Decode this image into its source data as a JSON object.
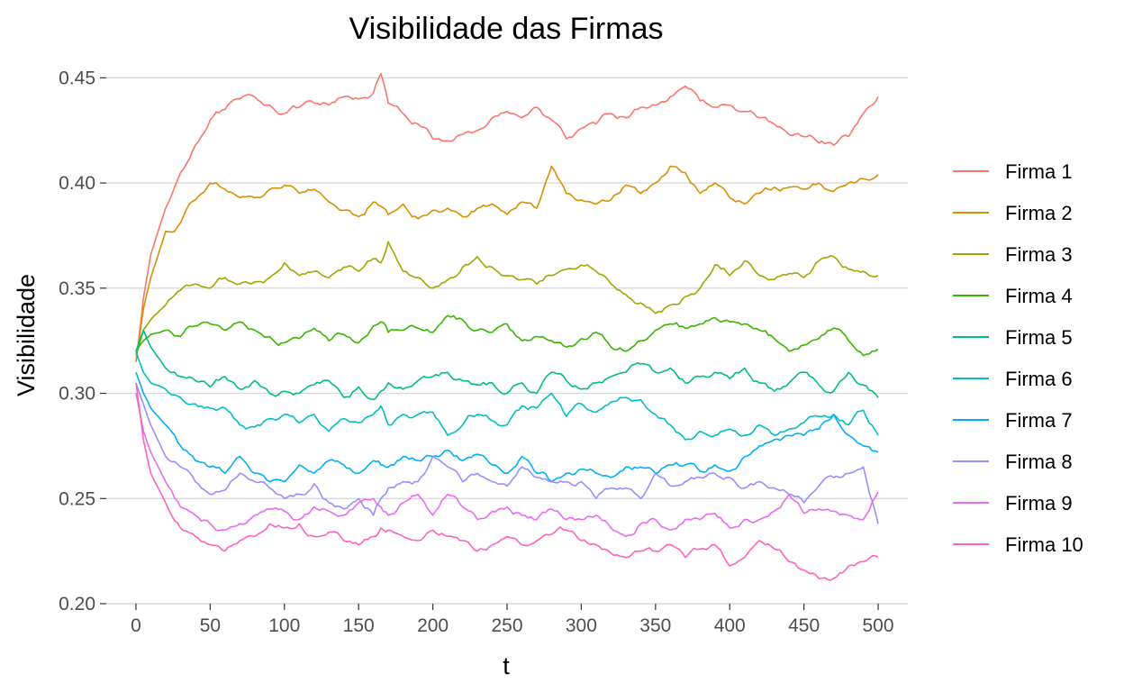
{
  "chart_data": {
    "type": "line",
    "title": "Visibilidade das Firmas",
    "xlabel": "t",
    "ylabel": "Visibilidade",
    "xlim": [
      -20,
      520
    ],
    "ylim": [
      0.2,
      0.457
    ],
    "x_ticks": [
      0,
      50,
      100,
      150,
      200,
      250,
      300,
      350,
      400,
      450,
      500
    ],
    "y_ticks": [
      0.2,
      0.25,
      0.3,
      0.35,
      0.4,
      0.45
    ],
    "y_tick_labels": [
      "0.20",
      "0.25",
      "0.30",
      "0.35",
      "0.40",
      "0.45"
    ],
    "grid": "horizontal major",
    "legend_position": "right",
    "x": [
      0,
      5,
      10,
      20,
      30,
      40,
      50,
      60,
      70,
      80,
      90,
      100,
      110,
      120,
      130,
      140,
      150,
      160,
      165,
      170,
      180,
      190,
      200,
      210,
      220,
      230,
      240,
      250,
      260,
      270,
      280,
      290,
      300,
      310,
      320,
      330,
      340,
      350,
      360,
      370,
      380,
      390,
      400,
      410,
      420,
      430,
      440,
      450,
      460,
      470,
      480,
      490,
      500
    ],
    "series": [
      {
        "name": "Firma 1",
        "color": "#F8766D",
        "values": [
          0.315,
          0.345,
          0.366,
          0.388,
          0.405,
          0.418,
          0.43,
          0.435,
          0.44,
          0.441,
          0.437,
          0.433,
          0.436,
          0.438,
          0.437,
          0.441,
          0.44,
          0.443,
          0.452,
          0.438,
          0.433,
          0.428,
          0.421,
          0.42,
          0.423,
          0.425,
          0.431,
          0.434,
          0.431,
          0.436,
          0.43,
          0.421,
          0.426,
          0.428,
          0.433,
          0.431,
          0.436,
          0.437,
          0.441,
          0.446,
          0.439,
          0.436,
          0.437,
          0.434,
          0.431,
          0.428,
          0.423,
          0.422,
          0.419,
          0.418,
          0.422,
          0.433,
          0.441
        ]
      },
      {
        "name": "Firma 2",
        "color": "#D89000",
        "values": [
          0.315,
          0.34,
          0.355,
          0.377,
          0.381,
          0.392,
          0.4,
          0.397,
          0.393,
          0.393,
          0.397,
          0.399,
          0.395,
          0.397,
          0.391,
          0.387,
          0.384,
          0.391,
          0.389,
          0.385,
          0.39,
          0.383,
          0.387,
          0.388,
          0.384,
          0.388,
          0.39,
          0.385,
          0.391,
          0.388,
          0.408,
          0.395,
          0.392,
          0.39,
          0.392,
          0.399,
          0.395,
          0.4,
          0.408,
          0.405,
          0.395,
          0.4,
          0.393,
          0.39,
          0.395,
          0.398,
          0.398,
          0.397,
          0.4,
          0.396,
          0.4,
          0.402,
          0.404
        ]
      },
      {
        "name": "Firma 3",
        "color": "#A3A500",
        "values": [
          0.318,
          0.33,
          0.335,
          0.342,
          0.349,
          0.352,
          0.35,
          0.355,
          0.352,
          0.353,
          0.355,
          0.362,
          0.356,
          0.358,
          0.355,
          0.36,
          0.358,
          0.364,
          0.362,
          0.372,
          0.358,
          0.355,
          0.35,
          0.354,
          0.36,
          0.365,
          0.36,
          0.356,
          0.354,
          0.352,
          0.356,
          0.359,
          0.361,
          0.358,
          0.352,
          0.347,
          0.343,
          0.338,
          0.342,
          0.346,
          0.35,
          0.361,
          0.356,
          0.363,
          0.356,
          0.354,
          0.357,
          0.355,
          0.363,
          0.365,
          0.359,
          0.358,
          0.356
        ]
      },
      {
        "name": "Firma 4",
        "color": "#39B600",
        "values": [
          0.32,
          0.325,
          0.328,
          0.33,
          0.327,
          0.332,
          0.333,
          0.33,
          0.334,
          0.33,
          0.327,
          0.324,
          0.326,
          0.331,
          0.325,
          0.328,
          0.324,
          0.332,
          0.334,
          0.329,
          0.33,
          0.331,
          0.329,
          0.337,
          0.335,
          0.33,
          0.329,
          0.333,
          0.325,
          0.327,
          0.325,
          0.322,
          0.326,
          0.329,
          0.322,
          0.32,
          0.325,
          0.33,
          0.333,
          0.331,
          0.333,
          0.336,
          0.334,
          0.333,
          0.33,
          0.326,
          0.32,
          0.323,
          0.326,
          0.331,
          0.325,
          0.318,
          0.321
        ]
      },
      {
        "name": "Firma 5",
        "color": "#00BF7D",
        "values": [
          0.32,
          0.33,
          0.322,
          0.312,
          0.308,
          0.306,
          0.303,
          0.308,
          0.302,
          0.306,
          0.3,
          0.301,
          0.3,
          0.304,
          0.306,
          0.298,
          0.303,
          0.297,
          0.301,
          0.305,
          0.302,
          0.306,
          0.308,
          0.31,
          0.306,
          0.304,
          0.305,
          0.3,
          0.305,
          0.3,
          0.31,
          0.306,
          0.302,
          0.305,
          0.308,
          0.31,
          0.314,
          0.31,
          0.312,
          0.305,
          0.308,
          0.31,
          0.307,
          0.312,
          0.305,
          0.301,
          0.305,
          0.31,
          0.304,
          0.301,
          0.31,
          0.304,
          0.298
        ]
      },
      {
        "name": "Firma 6",
        "color": "#00BFC4",
        "values": [
          0.32,
          0.31,
          0.305,
          0.302,
          0.298,
          0.295,
          0.293,
          0.293,
          0.285,
          0.284,
          0.288,
          0.29,
          0.286,
          0.29,
          0.282,
          0.288,
          0.286,
          0.29,
          0.294,
          0.285,
          0.29,
          0.29,
          0.291,
          0.28,
          0.285,
          0.29,
          0.287,
          0.285,
          0.294,
          0.293,
          0.3,
          0.289,
          0.295,
          0.291,
          0.296,
          0.298,
          0.297,
          0.29,
          0.285,
          0.278,
          0.282,
          0.28,
          0.283,
          0.28,
          0.285,
          0.28,
          0.283,
          0.286,
          0.289,
          0.29,
          0.285,
          0.292,
          0.28
        ]
      },
      {
        "name": "Firma 7",
        "color": "#00B0F6",
        "values": [
          0.31,
          0.3,
          0.293,
          0.285,
          0.275,
          0.268,
          0.265,
          0.262,
          0.27,
          0.262,
          0.258,
          0.258,
          0.266,
          0.262,
          0.268,
          0.266,
          0.262,
          0.268,
          0.266,
          0.265,
          0.27,
          0.268,
          0.27,
          0.273,
          0.268,
          0.271,
          0.266,
          0.262,
          0.27,
          0.262,
          0.258,
          0.262,
          0.264,
          0.262,
          0.26,
          0.265,
          0.265,
          0.262,
          0.266,
          0.266,
          0.263,
          0.266,
          0.263,
          0.27,
          0.275,
          0.278,
          0.28,
          0.28,
          0.283,
          0.29,
          0.28,
          0.275,
          0.272
        ]
      },
      {
        "name": "Firma 8",
        "color": "#9590FF",
        "values": [
          0.305,
          0.295,
          0.285,
          0.27,
          0.265,
          0.258,
          0.252,
          0.254,
          0.262,
          0.258,
          0.255,
          0.25,
          0.252,
          0.257,
          0.248,
          0.245,
          0.25,
          0.242,
          0.25,
          0.255,
          0.258,
          0.258,
          0.27,
          0.265,
          0.258,
          0.262,
          0.258,
          0.256,
          0.265,
          0.26,
          0.258,
          0.258,
          0.258,
          0.25,
          0.255,
          0.255,
          0.25,
          0.262,
          0.256,
          0.258,
          0.26,
          0.262,
          0.26,
          0.255,
          0.258,
          0.255,
          0.252,
          0.248,
          0.256,
          0.26,
          0.262,
          0.265,
          0.238
        ]
      },
      {
        "name": "Firma 9",
        "color": "#E76BF3",
        "values": [
          0.3,
          0.282,
          0.272,
          0.258,
          0.246,
          0.242,
          0.238,
          0.235,
          0.238,
          0.242,
          0.245,
          0.244,
          0.24,
          0.246,
          0.244,
          0.242,
          0.248,
          0.25,
          0.246,
          0.242,
          0.248,
          0.252,
          0.242,
          0.252,
          0.246,
          0.24,
          0.244,
          0.246,
          0.242,
          0.24,
          0.245,
          0.24,
          0.24,
          0.242,
          0.236,
          0.232,
          0.238,
          0.24,
          0.235,
          0.24,
          0.24,
          0.243,
          0.236,
          0.24,
          0.24,
          0.244,
          0.252,
          0.243,
          0.245,
          0.244,
          0.242,
          0.24,
          0.253
        ]
      },
      {
        "name": "Firma 10",
        "color": "#FF62BC",
        "values": [
          0.305,
          0.278,
          0.262,
          0.248,
          0.236,
          0.232,
          0.228,
          0.225,
          0.23,
          0.232,
          0.238,
          0.236,
          0.238,
          0.232,
          0.234,
          0.23,
          0.228,
          0.232,
          0.236,
          0.235,
          0.232,
          0.23,
          0.235,
          0.232,
          0.23,
          0.225,
          0.228,
          0.232,
          0.228,
          0.23,
          0.233,
          0.235,
          0.23,
          0.228,
          0.224,
          0.222,
          0.225,
          0.225,
          0.228,
          0.222,
          0.226,
          0.228,
          0.218,
          0.222,
          0.23,
          0.226,
          0.22,
          0.216,
          0.212,
          0.212,
          0.218,
          0.22,
          0.222
        ]
      }
    ]
  }
}
